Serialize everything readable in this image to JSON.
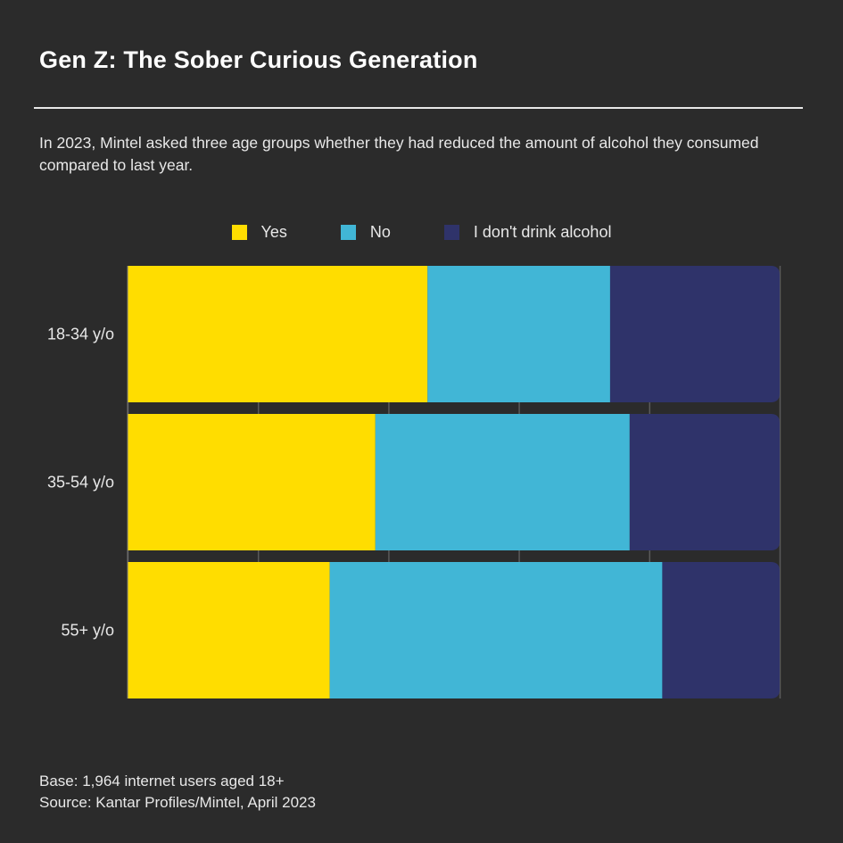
{
  "title": "Gen Z: The Sober Curious Generation",
  "subtitle": "In 2023, Mintel asked three age groups whether they had reduced the amount of alcohol they consumed compared to last year.",
  "footer": {
    "base": "Base: 1,964 internet users aged 18+",
    "source": "Source: Kantar Profiles/Mintel, April 2023"
  },
  "chart_data": {
    "type": "bar",
    "orientation": "horizontal",
    "stacked": true,
    "categories": [
      "18-34 y/o",
      "35-54 y/o",
      "55+ y/o"
    ],
    "series": [
      {
        "name": "Yes",
        "color": "#ffdd00",
        "values": [
          46,
          38,
          31
        ]
      },
      {
        "name": "No",
        "color": "#41b6d6",
        "values": [
          28,
          39,
          51
        ]
      },
      {
        "name": "I don't drink alcohol",
        "color": "#2f336a",
        "values": [
          26,
          23,
          18
        ]
      }
    ],
    "xlim": [
      0,
      100
    ],
    "grid": true,
    "legend_position": "top"
  }
}
